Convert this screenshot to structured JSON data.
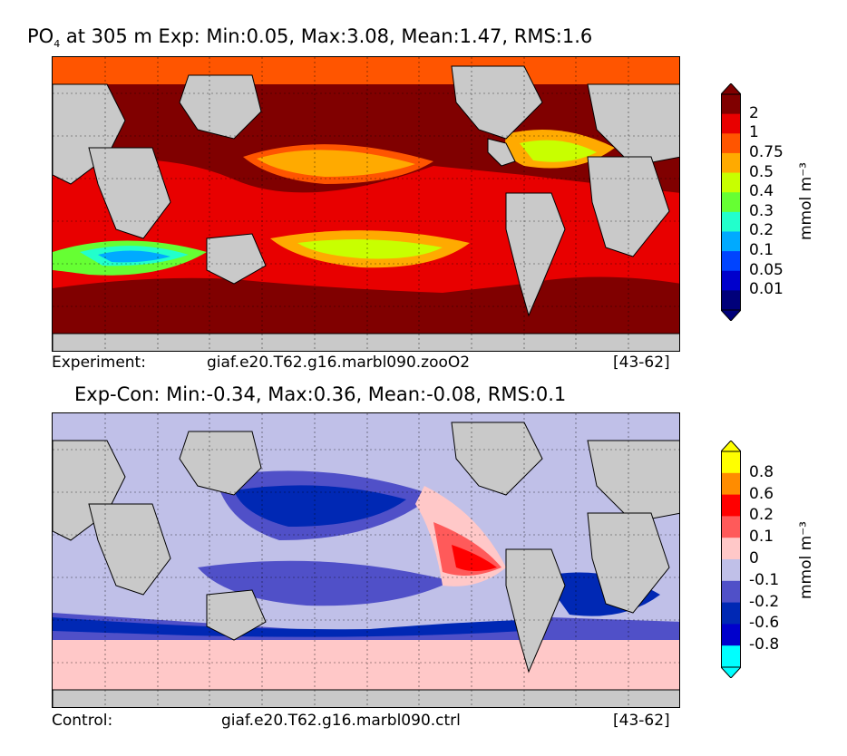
{
  "top": {
    "title_var": "PO",
    "title_sub": "4",
    "title_rest": " at 305 m Exp: Min:0.05, Max:3.08, Mean:1.47, RMS:1.6",
    "caption_left": "Experiment:",
    "caption_mid": "giaf.e20.T62.g16.marbl090.zooO2",
    "caption_right": "[43-62]",
    "colorbar": {
      "unit": "mmol m⁻³",
      "levels": [
        "2",
        "1",
        "0.75",
        "0.5",
        "0.4",
        "0.3",
        "0.2",
        "0.1",
        "0.05",
        "0.01"
      ],
      "colors": [
        "#800000",
        "#e80000",
        "#ff5500",
        "#ffaa00",
        "#c8ff00",
        "#66ff33",
        "#22ffcc",
        "#00aaff",
        "#0044ff",
        "#0000cc",
        "#00007a"
      ]
    }
  },
  "bottom": {
    "title": "Exp-Con: Min:-0.34, Max:0.36, Mean:-0.08, RMS:0.1",
    "caption_left": "Control:",
    "caption_mid": "giaf.e20.T62.g16.marbl090.ctrl",
    "caption_right": "[43-62]",
    "colorbar": {
      "unit": "mmol m⁻³",
      "levels": [
        "0.8",
        "0.6",
        "0.2",
        "0.1",
        "0",
        "-0.1",
        "-0.2",
        "-0.6",
        "-0.8"
      ],
      "colors": [
        "#ffff00",
        "#ff8c00",
        "#ff0000",
        "#ff5a5a",
        "#ffc8c8",
        "#c0c0e8",
        "#5050c8",
        "#0028b4",
        "#0000cc",
        "#00ffff"
      ]
    }
  },
  "map_colors": {
    "land": "#c9c9c9",
    "coast": "#000000",
    "ice": "#ffffff"
  }
}
